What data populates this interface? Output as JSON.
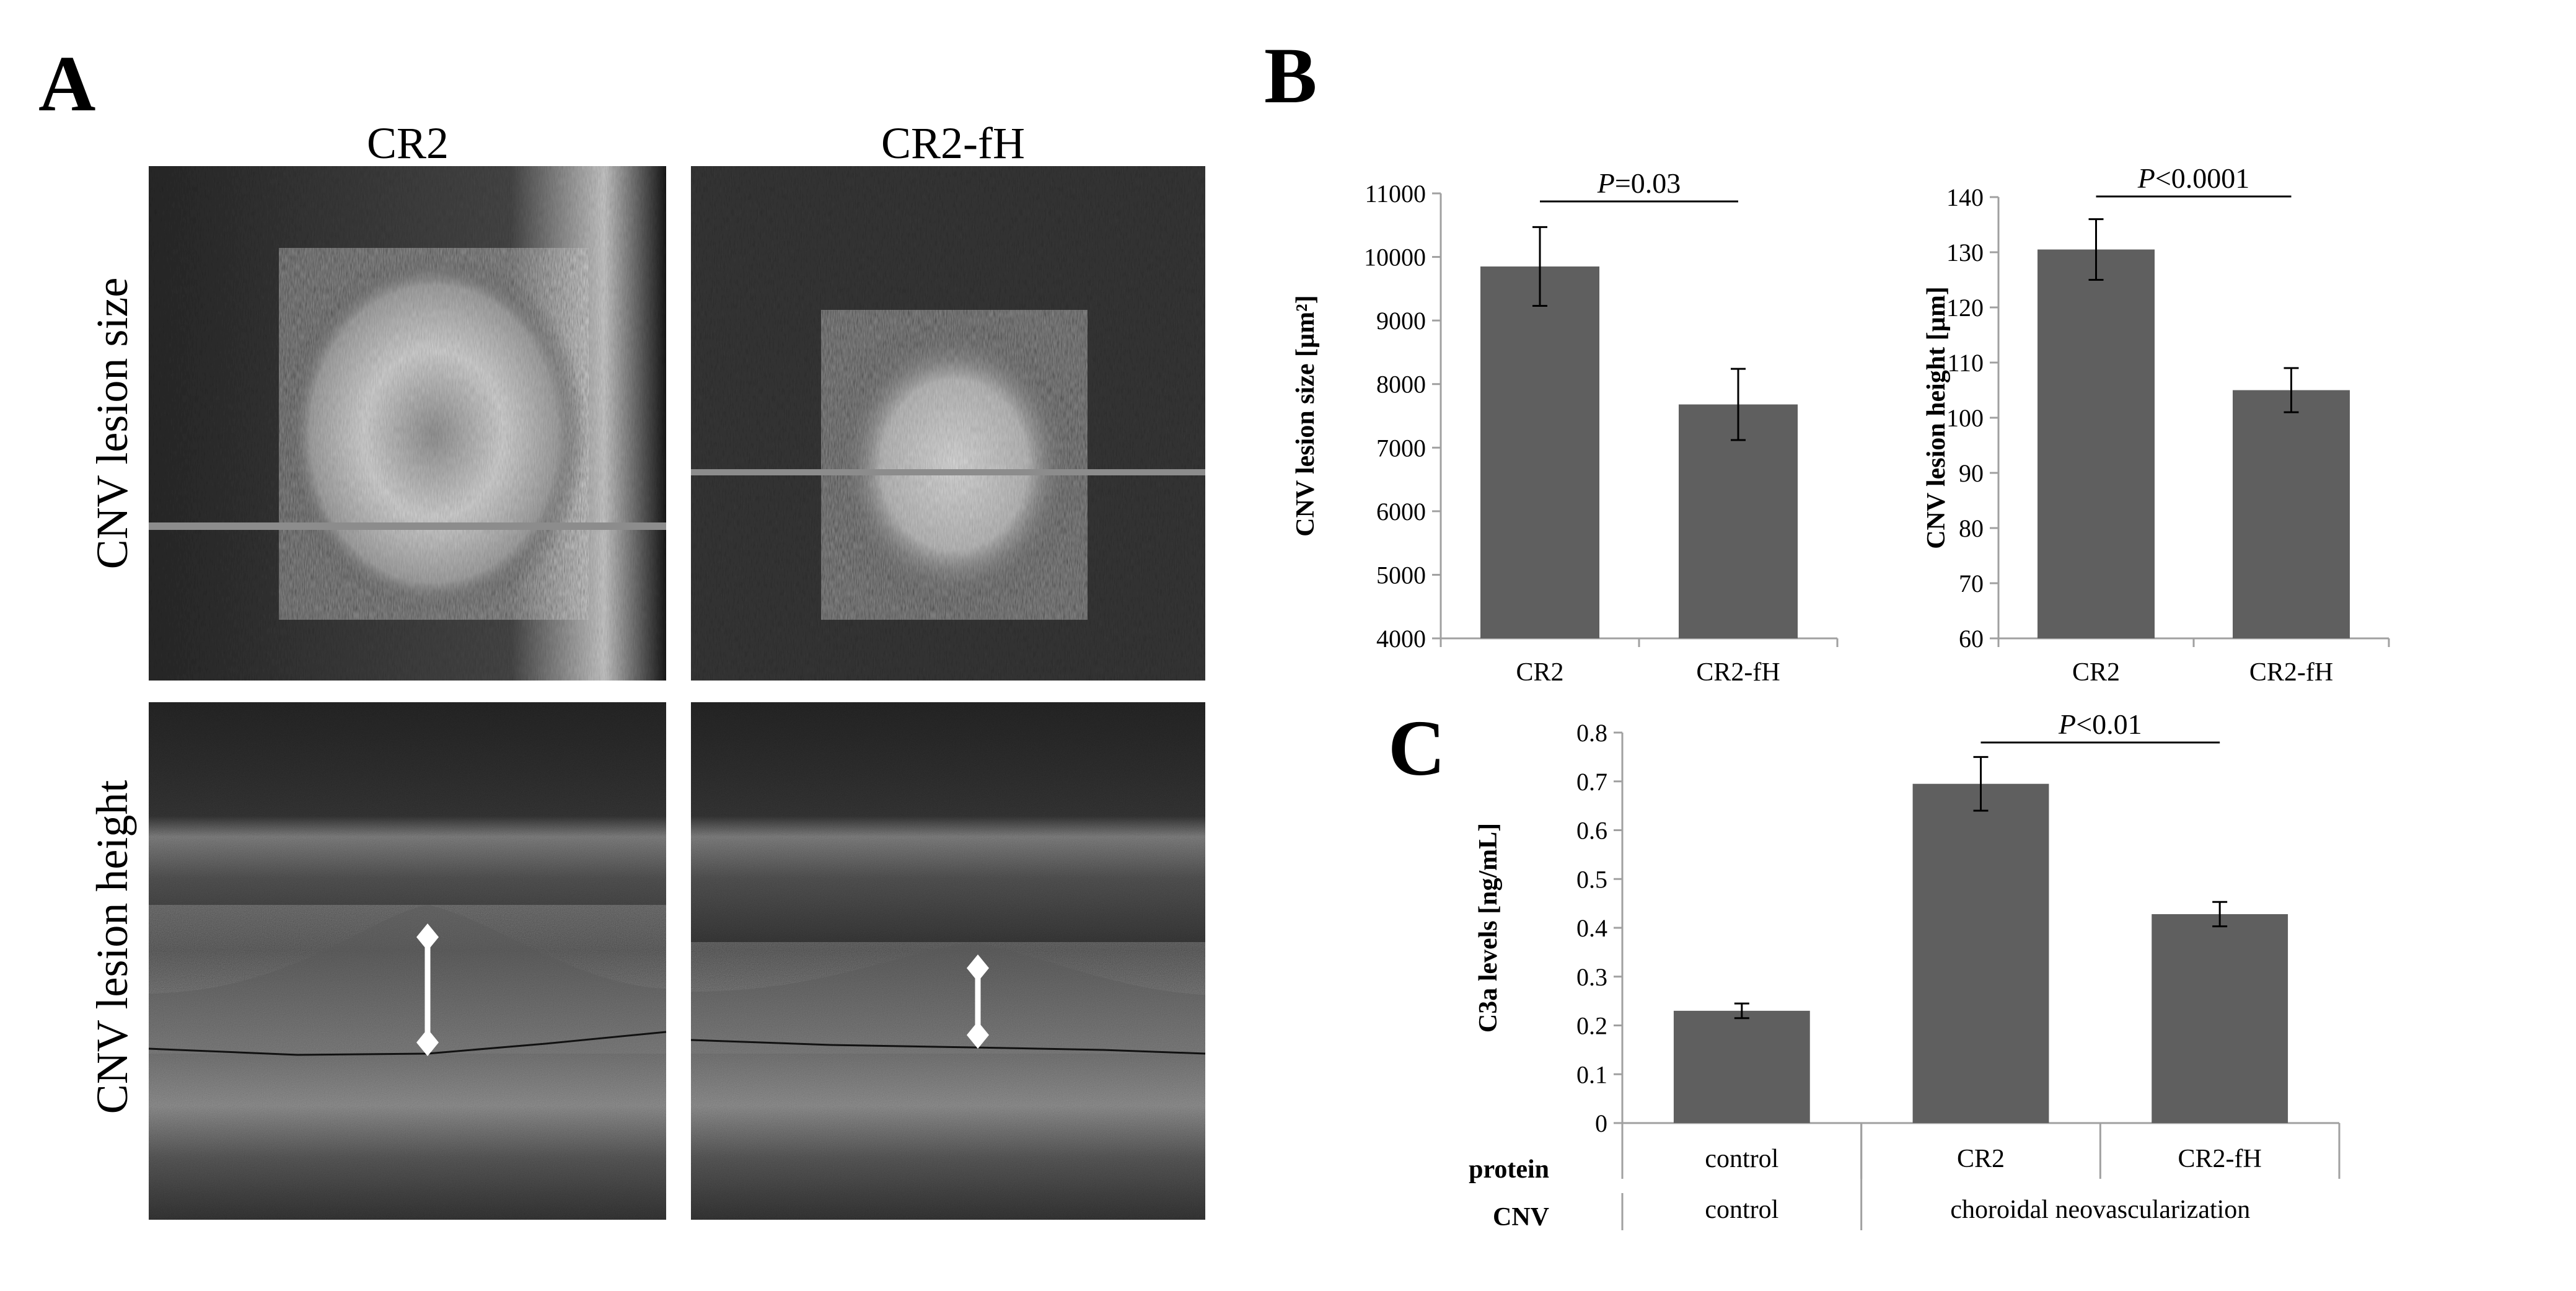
{
  "panels": {
    "a": {
      "letter": "A",
      "col_titles": [
        "CR2",
        "CR2-fH"
      ],
      "row_titles": [
        "CNV lesion size",
        "CNV lesion height"
      ]
    },
    "b": {
      "letter": "B"
    },
    "c": {
      "letter": "C"
    }
  },
  "colors": {
    "bar": "#5f5f5f",
    "axis": "#a0a0a0"
  },
  "chart_data": [
    {
      "id": "b-size",
      "type": "bar",
      "categories": [
        "CR2",
        "CR2-fH"
      ],
      "values": [
        9850,
        7680
      ],
      "errors": [
        620,
        560
      ],
      "ylabel": "CNV lesion  size [µm²]",
      "ylim": [
        4000,
        11000
      ],
      "yticks": [
        4000,
        5000,
        6000,
        7000,
        8000,
        9000,
        10000,
        11000
      ],
      "annotation": {
        "italic": "P",
        "rest": "=0.03"
      }
    },
    {
      "id": "b-height",
      "type": "bar",
      "categories": [
        "CR2",
        "CR2-fH"
      ],
      "values": [
        130.5,
        105
      ],
      "errors": [
        5.5,
        4
      ],
      "ylabel": "CNV lesion  height [µm]",
      "ylim": [
        60,
        140
      ],
      "yticks": [
        60,
        70,
        80,
        90,
        100,
        110,
        120,
        130,
        140
      ],
      "annotation": {
        "italic": "P",
        "rest": "<0.0001"
      }
    },
    {
      "id": "c-c3a",
      "type": "bar",
      "categories": [
        "control",
        "CR2",
        "CR2-fH"
      ],
      "values": [
        0.23,
        0.695,
        0.428
      ],
      "errors": [
        0.015,
        0.055,
        0.025
      ],
      "ylabel": "C3a levels [ng/mL]",
      "ylim": [
        0,
        0.8
      ],
      "yticks": [
        "0",
        "0.1",
        "0.2",
        "0.3",
        "0.4",
        "0.5",
        "0.6",
        "0.7",
        "0.8"
      ],
      "annotation": {
        "italic": "P",
        "rest": "<0.01"
      },
      "row_labels": [
        "protein",
        "CNV"
      ],
      "cnv_groups": [
        "control",
        "choroidal neovascularization"
      ]
    }
  ]
}
